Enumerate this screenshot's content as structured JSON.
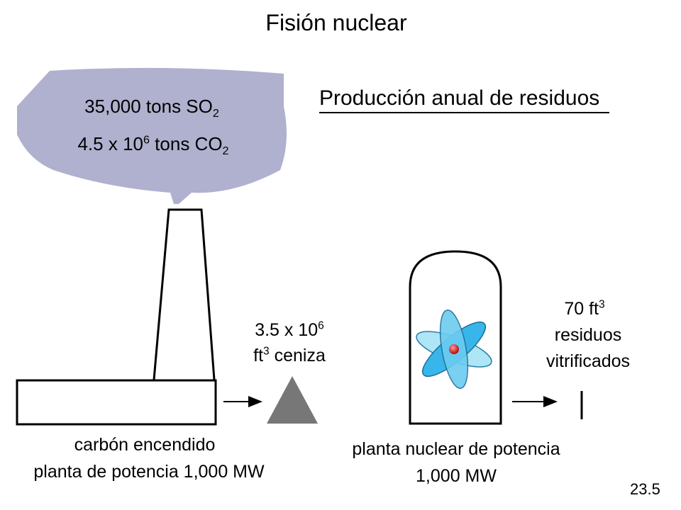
{
  "title": "Fisión nuclear",
  "subtitle": "Producción anual de residuos",
  "emissions": {
    "so2": {
      "value": "35,000 tons SO",
      "sub": "2"
    },
    "co2": {
      "pre": "4.5 x 10",
      "sup": "6",
      "mid": " tons CO",
      "sub": "2"
    }
  },
  "ash": {
    "line1": "3.5 x 10",
    "line1_sup": "6",
    "line2_pre": "ft",
    "line2_sup": "3",
    "line2_post": " ceniza"
  },
  "waste": {
    "line1_pre": "70 ft",
    "line1_sup": "3",
    "line2": "residuos",
    "line3": "vitrificados"
  },
  "coal_plant": {
    "line1": "carbón encendido",
    "line2": "planta de potencia 1,000 MW"
  },
  "nuclear_plant": {
    "line1": "planta nuclear de potencia",
    "line2": "1,000 MW"
  },
  "page_number": "23.5",
  "colors": {
    "smoke": "#b0b0cf",
    "ash": "#777777",
    "atom_light": "#aee6f5",
    "atom_dark": "#38b6ec",
    "nucleus": "#e02020"
  }
}
